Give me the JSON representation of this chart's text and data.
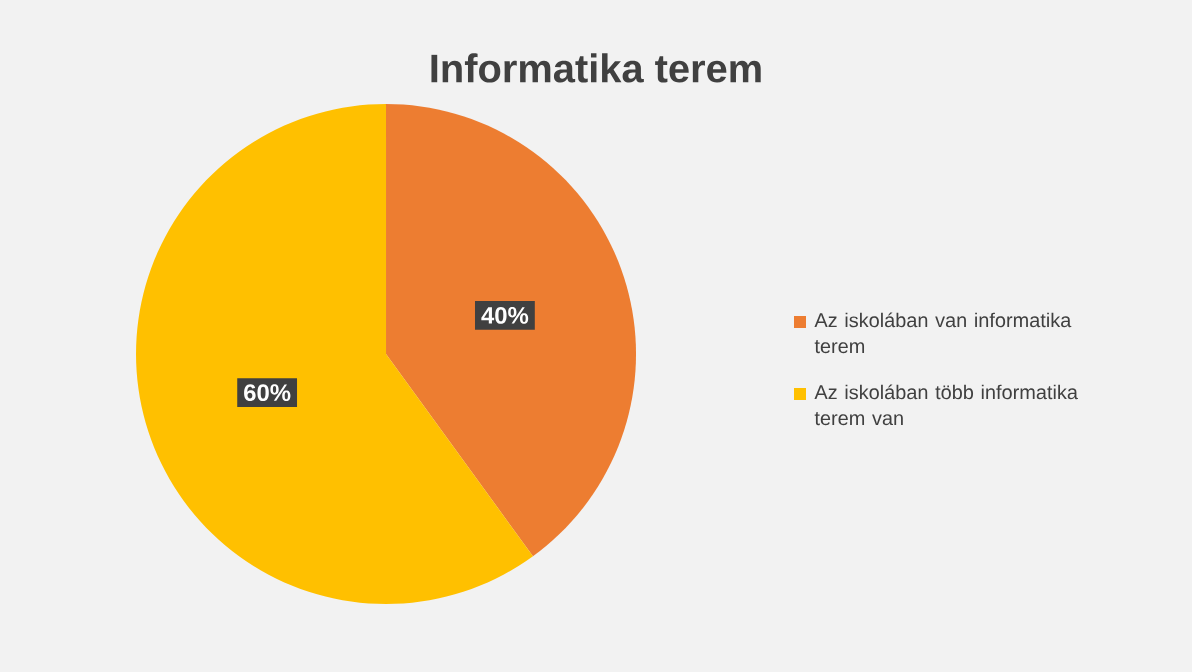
{
  "chart_data": {
    "type": "pie",
    "title": "Informatika terem",
    "categories": [
      "Az iskolában van informatika terem",
      "Az iskolában több informatika terem van"
    ],
    "values": [
      40,
      60
    ],
    "value_labels": [
      "40%",
      "60%"
    ],
    "colors": [
      "#ed7d31",
      "#ffc000"
    ],
    "legend": "right"
  }
}
